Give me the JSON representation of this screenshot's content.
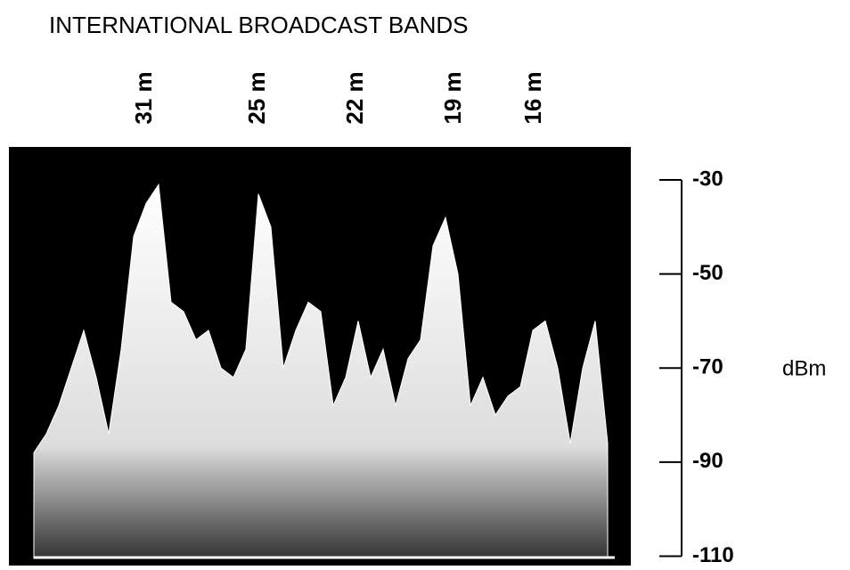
{
  "chart_data": {
    "type": "area",
    "title": "INTERNATIONAL BROADCAST BANDS",
    "bands": [
      "31 m",
      "25 m",
      "22 m",
      "19 m",
      "16 m"
    ],
    "y_label": "dBm",
    "ylim": [
      -112,
      -23
    ],
    "yticks": [
      -30,
      -50,
      -70,
      -90,
      -110
    ],
    "color": "#ffffff",
    "background": "#000000",
    "values": [
      -88,
      -84,
      -78,
      -70,
      -62,
      -72,
      -84,
      -66,
      -42,
      -35,
      -31,
      -56,
      -58,
      -64,
      -62,
      -70,
      -72,
      -66,
      -33,
      -40,
      -70,
      -62,
      -56,
      -58,
      -78,
      -72,
      -60,
      -72,
      -66,
      -78,
      -68,
      -64,
      -44,
      -38,
      -50,
      -78,
      -72,
      -80,
      -76,
      -74,
      -62,
      -60,
      -70,
      -86,
      -70,
      -60,
      -86
    ]
  }
}
